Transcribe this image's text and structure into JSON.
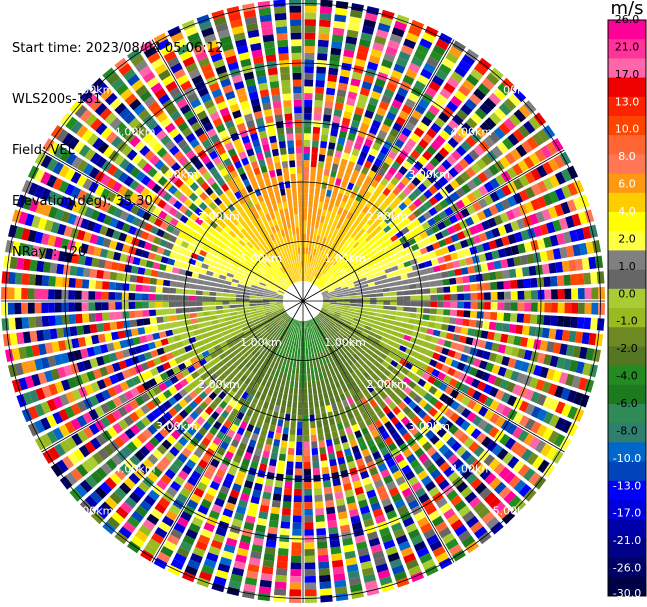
{
  "info": {
    "start_time_label": "Start time:",
    "start_time": "2023/08/04 05:06:12",
    "instrument": "WLS200s-181",
    "field_label": "Field:",
    "field": "VEL",
    "elevation_label": "Elevation(deg):",
    "elevation": "35.30",
    "nrays_label": "NRays:",
    "nrays": "120"
  },
  "colorbar": {
    "unit": "m/s",
    "ticks": [
      "26.0",
      "21.0",
      "17.0",
      "13.0",
      "10.0",
      "8.0",
      "6.0",
      "4.0",
      "2.0",
      "1.0",
      "0.0",
      "-1.0",
      "-2.0",
      "-4.0",
      "-6.0",
      "-8.0",
      "-10.0",
      "-13.0",
      "-17.0",
      "-21.0",
      "-26.0",
      "-30.0"
    ],
    "colors": [
      "#ff0099",
      "#ff3399",
      "#ff66aa",
      "#ee0000",
      "#ff2200",
      "#ff4400",
      "#ff6633",
      "#ff7755",
      "#ff9911",
      "#ffcc00",
      "#ffff00",
      "#ffff44",
      "#808080",
      "#666666",
      "#aacc33",
      "#99bb22",
      "#6e8b23",
      "#557722",
      "#228b22",
      "#1e7a1e",
      "#2e8b57",
      "#2e7f6e",
      "#0066cc",
      "#0044bb",
      "#0000ff",
      "#0000dd",
      "#0000aa",
      "#000088",
      "#000066",
      "#000044"
    ]
  },
  "chart_data": {
    "type": "ppi",
    "field": "VEL",
    "unit": "m/s",
    "nrays": 120,
    "range_rings": [
      "1.00km",
      "2.00km",
      "3.00km",
      "4.00km",
      "5.00km"
    ],
    "value_range": [
      -30.0,
      26.0
    ],
    "ring_colors": {
      "line": "#000000",
      "spoke": "#000000",
      "ray_gap": "#ffffff"
    }
  }
}
